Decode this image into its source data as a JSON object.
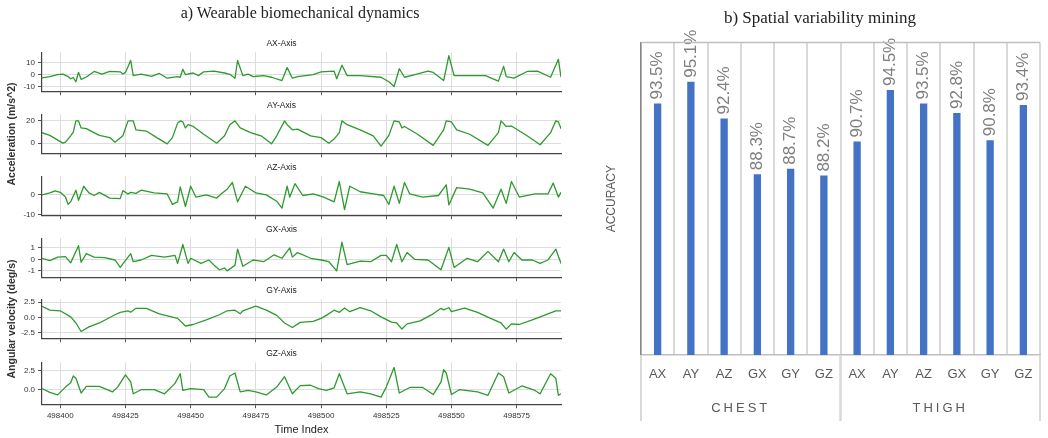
{
  "chart_data": [
    {
      "type": "line",
      "title": "a) Wearable biomechanical dynamics",
      "subtitle": "AX-Axis",
      "color": "#2e9a2e",
      "marker": "none",
      "grid": true,
      "tick_labels": "y",
      "xlim": [
        498393,
        498592
      ],
      "xticks": [
        498400,
        498425,
        498450,
        498475,
        498500,
        498525,
        498550,
        498575
      ],
      "ylim": [
        -14,
        19
      ],
      "yticks": [
        -10,
        0,
        10
      ],
      "x": [
        498393,
        498396,
        498399,
        498401,
        498403,
        498404,
        498405,
        498406,
        498407,
        498408,
        498410,
        498413,
        498416,
        498419,
        498423,
        498424,
        498425,
        498427,
        498428,
        498431,
        498435,
        498438,
        498441,
        498445,
        498446,
        498447,
        498448,
        498451,
        498453,
        498455,
        498459,
        498463,
        498465,
        498467,
        498468,
        498470,
        498472,
        498474,
        498478,
        498481,
        498485,
        498487,
        498489,
        498491,
        498494,
        498497,
        498500,
        498505,
        498506,
        498508,
        498510,
        498515,
        498523,
        498526,
        498528,
        498530,
        498532,
        498536,
        498541,
        498543,
        498547,
        498549,
        498551,
        498556,
        498563,
        498568,
        498570,
        498571,
        498574,
        498579,
        498583,
        498588,
        498591,
        498592
      ],
      "values": [
        -2.7,
        -1.6,
        0,
        0.5,
        -1.6,
        -3.5,
        -2.4,
        -6,
        2,
        -4,
        -2,
        2.7,
        0.5,
        2.7,
        2.4,
        0.5,
        1.9,
        12,
        -0.8,
        0.5,
        -1.4,
        1,
        -3,
        -1.6,
        -2.2,
        4.6,
        0,
        1.4,
        -0.8,
        2.4,
        3,
        1.4,
        0.3,
        -3,
        12,
        -0.8,
        0.5,
        -1.6,
        -0.8,
        -2.2,
        -5,
        6,
        -3,
        -1.6,
        -0.8,
        0,
        2.4,
        3,
        -3.5,
        8,
        -0.8,
        -0.8,
        -2.2,
        -6,
        -10,
        5,
        -2.2,
        0,
        3,
        1.9,
        -5,
        16,
        -0.8,
        -0.8,
        -0.8,
        -5.5,
        7,
        -1.6,
        -3,
        2.7,
        3,
        -2.2,
        13,
        -2.2
      ]
    },
    {
      "type": "line",
      "title": "AY-Axis",
      "ylabel": "Acceleration (m/s^2)",
      "color": "#2e9a2e",
      "marker": "none",
      "grid": true,
      "tick_labels": "y",
      "xlim": [
        498393,
        498592
      ],
      "xticks": [
        498400,
        498425,
        498450,
        498475,
        498500,
        498525,
        498550,
        498575
      ],
      "ylim": [
        -9,
        26
      ],
      "yticks": [
        0,
        20
      ],
      "x": [
        498393,
        498396,
        498401,
        498402,
        498404,
        498405,
        498406,
        498407,
        498408,
        498410,
        498415,
        498419,
        498421,
        498424,
        498426,
        498428,
        498429,
        498433,
        498437,
        498441,
        498443,
        498445,
        498446,
        498447,
        498448,
        498449,
        498451,
        498455,
        498460,
        498463,
        498465,
        498467,
        498469,
        498473,
        498477,
        498481,
        498483,
        498486,
        498487,
        498489,
        498491,
        498496,
        498500,
        498503,
        498505,
        498507,
        498508,
        498510,
        498515,
        498520,
        498523,
        498526,
        498528,
        498530,
        498531,
        498532,
        498537,
        498543,
        498547,
        498548,
        498550,
        498552,
        498557,
        498564,
        498568,
        498569,
        498571,
        498573,
        498579,
        498584,
        498588,
        498590,
        498591,
        498592
      ],
      "values": [
        9.4,
        7,
        0,
        0.9,
        6.6,
        10,
        20,
        20,
        13.7,
        13,
        7,
        5,
        0.9,
        6.6,
        20,
        20,
        12,
        10.9,
        5,
        -0.6,
        5,
        18,
        20,
        19.1,
        13.7,
        16.6,
        15,
        8,
        0,
        6.6,
        16.6,
        20,
        13.7,
        9.4,
        6.6,
        -0.6,
        6.6,
        20,
        16.6,
        12,
        12.6,
        6.6,
        5,
        0,
        3.7,
        9.4,
        20,
        16.6,
        12,
        6.6,
        -2.6,
        7,
        20,
        19.1,
        13.7,
        15,
        8,
        -2,
        12,
        20,
        19.1,
        12,
        8,
        -2,
        9.4,
        20,
        15,
        15.4,
        6.6,
        -1.4,
        9.4,
        20,
        19.1,
        13
      ]
    },
    {
      "type": "line",
      "title": "AZ-Axis",
      "color": "#2e9a2e",
      "marker": "none",
      "grid": true,
      "tick_labels": "y",
      "xlim": [
        498393,
        498592
      ],
      "xticks": [
        498400,
        498425,
        498450,
        498475,
        498500,
        498525,
        498550,
        498575
      ],
      "ylim": [
        -10.3,
        9.5
      ],
      "yticks": [
        -10,
        0
      ],
      "x": [
        498393,
        498396,
        498398,
        498400,
        498402,
        498403,
        498404,
        498406,
        498407,
        498409,
        498411,
        498413,
        498415,
        498419,
        498423,
        498424,
        498426,
        498427,
        498429,
        498431,
        498436,
        498441,
        498443,
        498445,
        498446,
        498448,
        498450,
        498452,
        498456,
        498460,
        498462,
        498464,
        498466,
        498468,
        498471,
        498475,
        498479,
        498483,
        498485,
        498487,
        498488,
        498490,
        498493,
        498497,
        498501,
        498505,
        498507,
        498509,
        498511,
        498515,
        498520,
        498524,
        498526,
        498528,
        498530,
        498532,
        498534,
        498539,
        498545,
        498548,
        498549,
        498552,
        498557,
        498562,
        498566,
        498569,
        498571,
        498573,
        498576,
        498582,
        498587,
        498589,
        498591,
        498592
      ],
      "values": [
        0,
        1,
        2.1,
        1.3,
        -1.1,
        -4.8,
        -3.5,
        2.4,
        -2.7,
        4.4,
        1,
        -0.3,
        1.3,
        -1.6,
        -1.9,
        2.2,
        0.5,
        1.3,
        0.8,
        2.4,
        1,
        0.5,
        -4.8,
        -3.5,
        4.1,
        -5.9,
        4.4,
        -1.1,
        0,
        -1.6,
        0.8,
        2.9,
        6.3,
        -3.5,
        4.4,
        1,
        0,
        -3.2,
        -6.7,
        4.4,
        -1.1,
        5.7,
        -0.3,
        0.5,
        -1.1,
        -3.5,
        6.8,
        -7.5,
        4.4,
        1.6,
        0.5,
        -0.3,
        -4.8,
        4.4,
        -4.3,
        6.3,
        0.5,
        -1.1,
        -0.3,
        5.1,
        -5.1,
        3.7,
        2.9,
        1,
        -6.7,
        2.9,
        -4.3,
        6.8,
        -1.1,
        0.5,
        0.5,
        6,
        -1.1,
        1.3
      ]
    },
    {
      "type": "line",
      "title": "GX-Axis",
      "color": "#2e9a2e",
      "marker": "none",
      "grid": true,
      "tick_labels": "y",
      "xlim": [
        498393,
        498592
      ],
      "xticks": [
        498400,
        498425,
        498450,
        498475,
        498500,
        498525,
        498550,
        498575
      ],
      "ylim": [
        -1.55,
        1.85
      ],
      "yticks": [
        -1,
        0,
        1
      ],
      "x": [
        498393,
        498396,
        498399,
        498402,
        498404,
        498407,
        498408,
        498410,
        498413,
        498417,
        498421,
        498423,
        498427,
        498428,
        498431,
        498435,
        498440,
        498444,
        498445,
        498447,
        498449,
        498450,
        498454,
        498457,
        498459,
        498461,
        498463,
        498464,
        498467,
        498468,
        498470,
        498474,
        498478,
        498482,
        498485,
        498488,
        498489,
        498491,
        498496,
        498500,
        498503,
        498506,
        498508,
        498510,
        498515,
        498519,
        498523,
        498525,
        498527,
        498529,
        498531,
        498533,
        498536,
        498541,
        498546,
        498549,
        498551,
        498556,
        498560,
        498564,
        498568,
        498570,
        498572,
        498574,
        498577,
        498581,
        498584,
        498587,
        498590,
        498592
      ],
      "values": [
        0.1,
        -0.1,
        0.2,
        0.25,
        -0.3,
        1.2,
        -0.25,
        0.5,
        0.2,
        0.15,
        -0.05,
        -0.7,
        0.5,
        -0.2,
        -0.05,
        0.35,
        0.2,
        0.35,
        -0.35,
        1.3,
        -0.35,
        0.1,
        -0.35,
        -0.05,
        -0.5,
        -0.9,
        -0.75,
        -1,
        -0.5,
        0.9,
        -0.6,
        -0.05,
        -0.2,
        0.4,
        0.1,
        1,
        0.2,
        0.6,
        0.1,
        -0.05,
        -0.2,
        -1,
        1.5,
        -0.45,
        -0.15,
        -0.2,
        0.35,
        0.35,
        -0.2,
        1.3,
        -0.2,
        0.6,
        0,
        -0.05,
        -0.9,
        1.05,
        -0.7,
        0.1,
        -0.2,
        0.7,
        -0.2,
        0.9,
        -0.2,
        0.6,
        -0.05,
        -0.05,
        -0.35,
        -0.05,
        0.9,
        -0.35
      ]
    },
    {
      "type": "line",
      "title": "GY-Axis",
      "ylabel": "Angular velocity (deg/s)",
      "color": "#2e9a2e",
      "marker": "none",
      "grid": true,
      "tick_labels": "y",
      "xlim": [
        498393,
        498592
      ],
      "xticks": [
        498400,
        498425,
        498450,
        498475,
        498500,
        498525,
        498550,
        498575
      ],
      "ylim": [
        -3.4,
        3.0
      ],
      "yticks": [
        {
          "value": -2.5,
          "label": "-2.5"
        },
        {
          "value": 0,
          "label": "0.0"
        },
        {
          "value": 2.5,
          "label": "2.5"
        }
      ],
      "x": [
        498393,
        498396,
        498400,
        498404,
        498406,
        498408,
        498411,
        498415,
        498421,
        498423,
        498426,
        498427,
        498429,
        498433,
        498438,
        498445,
        498448,
        498451,
        498456,
        498461,
        498464,
        498467,
        498469,
        498470,
        498475,
        498479,
        498483,
        498486,
        498489,
        498492,
        498497,
        498500,
        498502,
        498505,
        498507,
        498509,
        498511,
        498515,
        498519,
        498523,
        498527,
        498529,
        498531,
        498533,
        498538,
        498543,
        498546,
        498547,
        498549,
        498550,
        498555,
        498560,
        498565,
        498569,
        498571,
        498573,
        498576,
        498581,
        498587,
        498590,
        498592
      ],
      "values": [
        1.85,
        1.2,
        1.1,
        0.1,
        -0.9,
        -2.3,
        -1.55,
        -0.9,
        0.45,
        0.85,
        1.1,
        0.85,
        1.5,
        1.5,
        0.6,
        -0.15,
        -1.4,
        -1.15,
        -0.4,
        0.45,
        1.1,
        1.2,
        0.6,
        1.1,
        1.85,
        1.2,
        0.35,
        -0.9,
        -1.65,
        -0.8,
        -0.65,
        -0.15,
        0.35,
        1.2,
        0.85,
        1.55,
        0.95,
        1.6,
        1.1,
        0.1,
        -0.75,
        -0.9,
        -1.9,
        -1.05,
        -0.55,
        0.6,
        1.5,
        1.25,
        1.6,
        0.95,
        1.55,
        0.85,
        -0.15,
        -0.9,
        -1.9,
        -1.05,
        -1.15,
        -0.4,
        0.6,
        1.1,
        1.1
      ]
    },
    {
      "type": "line",
      "title": "GZ-Axis",
      "xlabel": "Time Index",
      "color": "#2e9a2e",
      "marker": "none",
      "grid": true,
      "xlim": [
        498393,
        498592
      ],
      "xticks": [
        498400,
        498425,
        498450,
        498475,
        498500,
        498525,
        498550,
        498575
      ],
      "ylim": [
        -2,
        3.65
      ],
      "yticks": [
        {
          "value": 0,
          "label": "0.0"
        },
        {
          "value": 2.5,
          "label": "2.5"
        }
      ],
      "x": [
        498393,
        498396,
        498399,
        498402,
        498404,
        498405,
        498406,
        498408,
        498410,
        498415,
        498420,
        498422,
        498425,
        498427,
        498428,
        498431,
        498436,
        498440,
        498444,
        498446,
        498447,
        498450,
        498455,
        498457,
        498460,
        498463,
        498465,
        498467,
        498469,
        498472,
        498475,
        498479,
        498483,
        498486,
        498489,
        498492,
        498496,
        498499,
        498502,
        498505,
        498507,
        498510,
        498515,
        498519,
        498523,
        498525,
        498528,
        498530,
        498534,
        498539,
        498543,
        498546,
        498547,
        498548,
        498550,
        498553,
        498560,
        498564,
        498568,
        498570,
        498572,
        498577,
        498582,
        498584,
        498588,
        498590,
        498591,
        498592
      ],
      "values": [
        0.1,
        -0.4,
        -0.75,
        0.3,
        0.9,
        1.8,
        1.5,
        -0.5,
        0.4,
        0.4,
        -0.35,
        0.3,
        1.95,
        1,
        -0.6,
        -0.05,
        -0.05,
        -0.6,
        0.8,
        2.1,
        -0.15,
        0.1,
        -0.05,
        -1.05,
        -1.05,
        0.1,
        1.8,
        2.2,
        -0.35,
        -0.15,
        -0.35,
        -0.75,
        0.3,
        1.7,
        -0.6,
        0.5,
        0.55,
        0.1,
        -0.15,
        0.2,
        2.1,
        -0.6,
        -0.35,
        -0.6,
        -1.05,
        0.3,
        2.95,
        -0.5,
        0.25,
        0.25,
        -0.7,
        1,
        2.65,
        2.2,
        -0.7,
        -0.05,
        -0.35,
        -0.8,
        2.2,
        1.7,
        -0.5,
        0.45,
        -0.15,
        -0.6,
        2.1,
        1.5,
        -0.8,
        -0.6
      ]
    },
    {
      "type": "bar",
      "title": "b) Spatial variability mining",
      "ylabel": "ACCURACY",
      "categories": [
        "AX",
        "AY",
        "AZ",
        "GX",
        "GY",
        "GZ",
        "AX",
        "AY",
        "AZ",
        "GX",
        "GY",
        "GZ"
      ],
      "values": [
        93.5,
        95.1,
        92.4,
        88.3,
        88.7,
        88.2,
        90.7,
        94.5,
        93.5,
        92.8,
        90.8,
        93.4
      ],
      "value_labels": [
        "93.5%",
        "95.1%",
        "92.4%",
        "88.3%",
        "88.7%",
        "88.2%",
        "90.7%",
        "94.5%",
        "93.5%",
        "92.8%",
        "90.8%",
        "93.4%"
      ],
      "color": "#4472c4",
      "ylim": [
        75,
        98
      ],
      "grid": "x",
      "tick_labels": "x",
      "annotations": [
        "CHEST",
        "THIGH"
      ]
    }
  ]
}
